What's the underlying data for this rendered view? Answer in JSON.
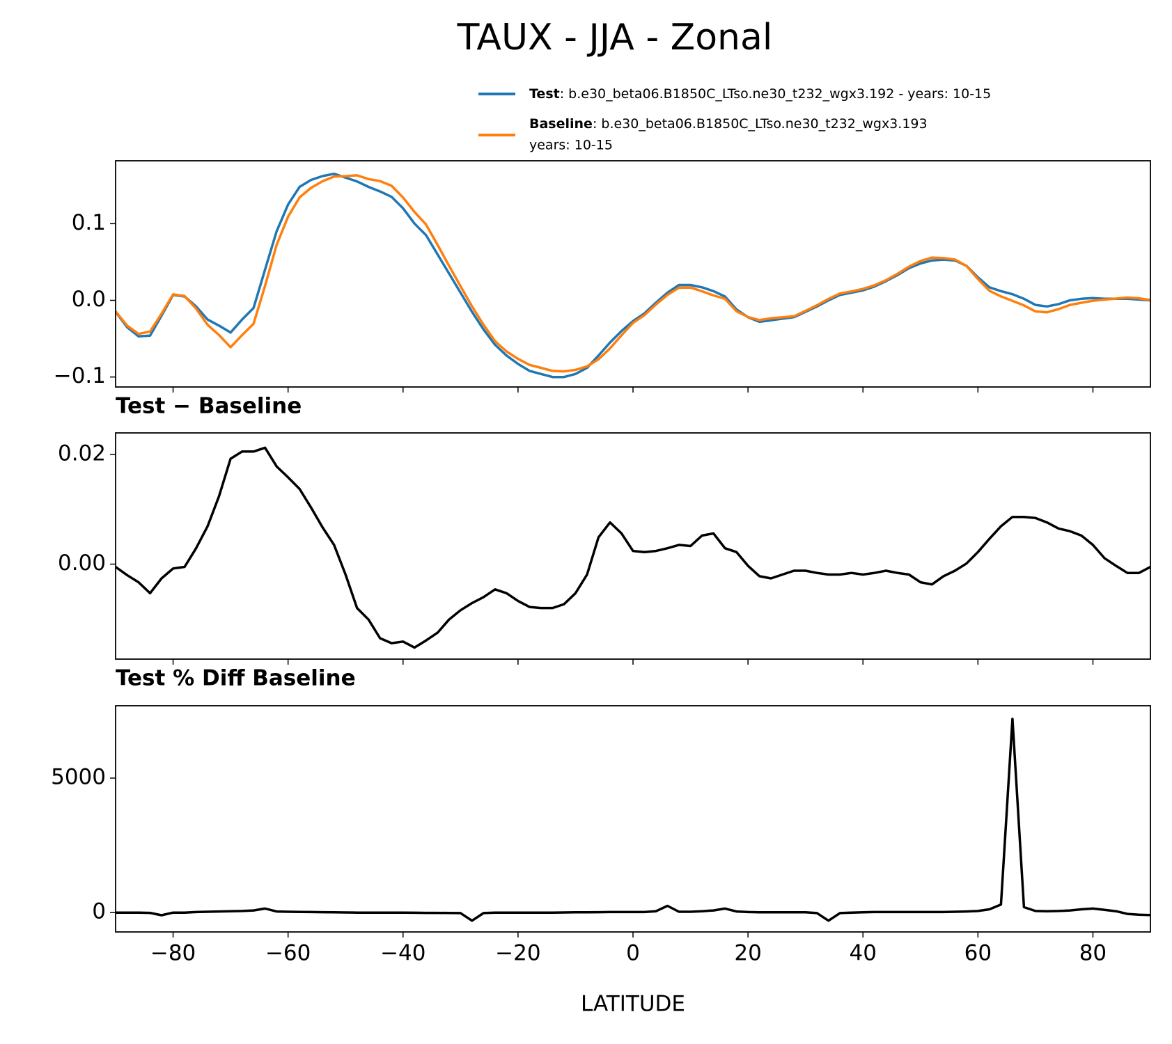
{
  "chart_data": [
    {
      "type": "line",
      "title": "TAUX - JJA - Zonal",
      "x": [
        -90,
        -88,
        -86,
        -84,
        -82,
        -80,
        -78,
        -76,
        -74,
        -72,
        -70,
        -68,
        -66,
        -64,
        -62,
        -60,
        -58,
        -56,
        -54,
        -52,
        -50,
        -48,
        -46,
        -44,
        -42,
        -40,
        -38,
        -36,
        -34,
        -32,
        -30,
        -28,
        -26,
        -24,
        -22,
        -20,
        -18,
        -16,
        -14,
        -12,
        -10,
        -8,
        -6,
        -4,
        -2,
        0,
        2,
        4,
        6,
        8,
        10,
        12,
        14,
        16,
        18,
        20,
        22,
        24,
        26,
        28,
        30,
        32,
        34,
        36,
        38,
        40,
        42,
        44,
        46,
        48,
        50,
        52,
        54,
        56,
        58,
        60,
        62,
        64,
        66,
        68,
        70,
        72,
        74,
        76,
        78,
        80,
        82,
        84,
        86,
        88,
        90
      ],
      "series": [
        {
          "name": "Test",
          "label": [
            ": b.e30_beta06.B1850C_LTso.ne30_t232_wgx3.192 - years: 10-15"
          ],
          "color": "#1f77b4",
          "values": [
            -0.015,
            -0.035,
            -0.047,
            -0.046,
            -0.02,
            0.007,
            0.005,
            -0.008,
            -0.025,
            -0.033,
            -0.042,
            -0.025,
            -0.01,
            0.04,
            0.09,
            0.125,
            0.148,
            0.157,
            0.162,
            0.165,
            0.16,
            0.155,
            0.148,
            0.142,
            0.135,
            0.12,
            0.1,
            0.085,
            0.06,
            0.035,
            0.01,
            -0.015,
            -0.038,
            -0.058,
            -0.072,
            -0.083,
            -0.092,
            -0.096,
            -0.1,
            -0.1,
            -0.096,
            -0.088,
            -0.072,
            -0.055,
            -0.04,
            -0.027,
            -0.017,
            -0.003,
            0.01,
            0.02,
            0.02,
            0.017,
            0.012,
            0.005,
            -0.012,
            -0.022,
            -0.028,
            -0.026,
            -0.024,
            -0.022,
            -0.015,
            -0.008,
            0.0,
            0.007,
            0.01,
            0.013,
            0.018,
            0.025,
            0.033,
            0.042,
            0.048,
            0.052,
            0.053,
            0.052,
            0.045,
            0.03,
            0.017,
            0.012,
            0.008,
            0.002,
            -0.006,
            -0.008,
            -0.005,
            0.0,
            0.002,
            0.003,
            0.002,
            0.002,
            0.002,
            0.001,
            0.0
          ]
        },
        {
          "name": "Baseline",
          "label": [
            ": b.e30_beta06.B1850C_LTso.ne30_t232_wgx3.193",
            "years: 10-15"
          ],
          "color": "#ff7f0e",
          "values": [
            -0.0145,
            -0.033,
            -0.0437,
            -0.0407,
            -0.0174,
            0.0078,
            0.0055,
            -0.0109,
            -0.0319,
            -0.0454,
            -0.0612,
            -0.0455,
            -0.0305,
            0.0188,
            0.0722,
            0.1092,
            0.1343,
            0.1467,
            0.1553,
            0.1615,
            0.1619,
            0.163,
            0.1581,
            0.1555,
            0.1494,
            0.1341,
            0.1152,
            0.0989,
            0.0725,
            0.0451,
            0.0184,
            -0.0079,
            -0.032,
            -0.0534,
            -0.0667,
            -0.0763,
            -0.0842,
            -0.088,
            -0.092,
            -0.0927,
            -0.0907,
            -0.0861,
            -0.0769,
            -0.0626,
            -0.0456,
            -0.0294,
            -0.0192,
            -0.0054,
            0.0071,
            0.0165,
            0.0167,
            0.0118,
            0.0064,
            0.0021,
            -0.0142,
            -0.0217,
            -0.0258,
            -0.0234,
            -0.0221,
            -0.0208,
            -0.0138,
            -0.0064,
            0.0019,
            0.0089,
            0.0116,
            0.0149,
            0.0196,
            0.0262,
            0.0346,
            0.0439,
            0.0513,
            0.0557,
            0.0552,
            0.0532,
            0.0449,
            0.0278,
            0.0124,
            0.0051,
            -0.0006,
            -0.0066,
            -0.0144,
            -0.0156,
            -0.0115,
            -0.006,
            -0.0032,
            -0.0005,
            0.0009,
            0.0023,
            0.0036,
            0.0026,
            0.0005
          ]
        }
      ],
      "xlim": [
        -90,
        90
      ],
      "xticks": [
        -80,
        -60,
        -40,
        -20,
        0,
        20,
        40,
        60,
        80
      ],
      "ylim": [
        -0.113,
        0.182
      ],
      "yticks": [
        {
          "value": -0.1,
          "label": "−0.1"
        },
        {
          "value": 0,
          "label": "0.0"
        },
        0.1
      ]
    },
    {
      "type": "line",
      "title": "Test − Baseline",
      "x": [
        -90,
        -88,
        -86,
        -84,
        -82,
        -80,
        -78,
        -76,
        -74,
        -72,
        -70,
        -68,
        -66,
        -64,
        -62,
        -60,
        -58,
        -56,
        -54,
        -52,
        -50,
        -48,
        -46,
        -44,
        -42,
        -40,
        -38,
        -36,
        -34,
        -32,
        -30,
        -28,
        -26,
        -24,
        -22,
        -20,
        -18,
        -16,
        -14,
        -12,
        -10,
        -8,
        -6,
        -4,
        -2,
        0,
        2,
        4,
        6,
        8,
        10,
        12,
        14,
        16,
        18,
        20,
        22,
        24,
        26,
        28,
        30,
        32,
        34,
        36,
        38,
        40,
        42,
        44,
        46,
        48,
        50,
        52,
        54,
        56,
        58,
        60,
        62,
        64,
        66,
        68,
        70,
        72,
        74,
        76,
        78,
        80,
        82,
        84,
        86,
        88,
        90
      ],
      "color": "#000000",
      "values": [
        -0.0005,
        -0.002,
        -0.0033,
        -0.0053,
        -0.0026,
        -0.0008,
        -0.0005,
        0.0029,
        0.0069,
        0.0124,
        0.0192,
        0.0205,
        0.0205,
        0.0212,
        0.0178,
        0.0158,
        0.0137,
        0.0103,
        0.0067,
        0.0035,
        -0.0019,
        -0.008,
        -0.0101,
        -0.0135,
        -0.0144,
        -0.0141,
        -0.0152,
        -0.0139,
        -0.0125,
        -0.0101,
        -0.0084,
        -0.0071,
        -0.006,
        -0.0046,
        -0.0053,
        -0.0067,
        -0.0078,
        -0.008,
        -0.008,
        -0.0073,
        -0.0053,
        -0.0019,
        0.0049,
        0.0076,
        0.0056,
        0.0024,
        0.0022,
        0.0024,
        0.0029,
        0.0035,
        0.0033,
        0.0052,
        0.0056,
        0.0029,
        0.0022,
        -0.0003,
        -0.0022,
        -0.0026,
        -0.0019,
        -0.0012,
        -0.0012,
        -0.0016,
        -0.0019,
        -0.0019,
        -0.0016,
        -0.0019,
        -0.0016,
        -0.0012,
        -0.0016,
        -0.0019,
        -0.0033,
        -0.0037,
        -0.0022,
        -0.0012,
        0.0001,
        0.0022,
        0.0046,
        0.0069,
        0.0086,
        0.0086,
        0.0084,
        0.0076,
        0.0065,
        0.006,
        0.0052,
        0.0035,
        0.0011,
        -0.0003,
        -0.0016,
        -0.0016,
        -0.0005
      ],
      "xlim": [
        -90,
        90
      ],
      "xticks": [
        -80,
        -60,
        -40,
        -20,
        0,
        20,
        40,
        60,
        80
      ],
      "ylim": [
        -0.0173,
        0.0239
      ],
      "yticks": [
        {
          "value": 0,
          "label": "0.00"
        },
        0.02
      ]
    },
    {
      "type": "line",
      "title": "Test % Diff Baseline",
      "xlabel": "LATITUDE",
      "x": [
        -90,
        -88,
        -86,
        -84,
        -82,
        -80,
        -78,
        -76,
        -74,
        -72,
        -70,
        -68,
        -66,
        -64,
        -62,
        -60,
        -58,
        -56,
        -54,
        -52,
        -50,
        -48,
        -46,
        -44,
        -42,
        -40,
        -38,
        -36,
        -34,
        -32,
        -30,
        -28,
        -26,
        -24,
        -22,
        -20,
        -18,
        -16,
        -14,
        -12,
        -10,
        -8,
        -6,
        -4,
        -2,
        0,
        2,
        4,
        6,
        8,
        10,
        12,
        14,
        16,
        18,
        20,
        22,
        24,
        26,
        28,
        30,
        32,
        34,
        36,
        38,
        40,
        42,
        44,
        46,
        48,
        50,
        52,
        54,
        56,
        58,
        60,
        62,
        64,
        66,
        68,
        70,
        72,
        74,
        76,
        78,
        80,
        82,
        84,
        86,
        88,
        90
      ],
      "color": "#000000",
      "values": [
        0,
        0,
        0,
        -10,
        -100,
        0,
        0,
        20,
        30,
        40,
        50,
        60,
        80,
        150,
        40,
        30,
        25,
        20,
        15,
        10,
        5,
        0,
        0,
        0,
        0,
        0,
        -5,
        -10,
        -10,
        -15,
        -20,
        -300,
        -20,
        0,
        0,
        0,
        0,
        0,
        0,
        5,
        10,
        10,
        15,
        20,
        20,
        20,
        20,
        50,
        250,
        30,
        30,
        50,
        80,
        150,
        40,
        20,
        10,
        10,
        10,
        10,
        10,
        -20,
        -300,
        -20,
        0,
        10,
        20,
        20,
        20,
        20,
        20,
        20,
        20,
        30,
        40,
        60,
        120,
        300,
        7200,
        200,
        60,
        50,
        60,
        80,
        120,
        150,
        100,
        50,
        -50,
        -80,
        -90
      ],
      "xlim": [
        -90,
        90
      ],
      "xticks": [
        {
          "value": -80,
          "label": "−80"
        },
        {
          "value": -60,
          "label": "−60"
        },
        {
          "value": -40,
          "label": "−40"
        },
        {
          "value": -20,
          "label": "−20"
        },
        0,
        20,
        40,
        60,
        80
      ],
      "ylim": [
        -720,
        7690
      ],
      "yticks": [
        0,
        5000
      ]
    }
  ]
}
